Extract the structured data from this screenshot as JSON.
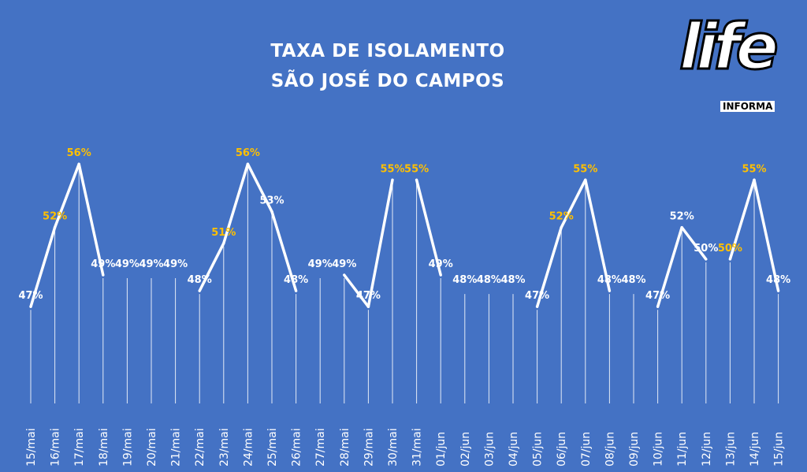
{
  "chart_data": {
    "type": "line",
    "title": [
      "TAXA DE ISOLAMENTO",
      "SÃO JOSÉ DO CAMPOS"
    ],
    "categories": [
      "15/mai",
      "16/mai",
      "17/mai",
      "18/mai",
      "19/mai",
      "20/mai",
      "21/mai",
      "22/mai",
      "23/mai",
      "24/mai",
      "25/mai",
      "26/mai",
      "27/mai",
      "28/mai",
      "29/mai",
      "30/mai",
      "31/mai",
      "01/jun",
      "02/jun",
      "03/jun",
      "04/jun",
      "05/jun",
      "06/jun",
      "07/jun",
      "08/jun",
      "09/jun",
      "10/jun",
      "11/jun",
      "12/jun",
      "13/jun",
      "14/jun",
      "15/jun"
    ],
    "values": [
      47,
      52,
      56,
      49,
      49,
      49,
      49,
      48,
      51,
      56,
      53,
      48,
      49,
      49,
      47,
      55,
      55,
      49,
      48,
      48,
      48,
      47,
      52,
      55,
      48,
      48,
      47,
      52,
      50,
      50,
      55,
      48
    ],
    "labels": [
      "47%",
      "52%",
      "56%",
      "49%",
      "49%",
      "49%",
      "49%",
      "48%",
      "51%",
      "56%",
      "53%",
      "48%",
      "49%",
      "49%",
      "47%",
      "55%",
      "55%",
      "49%",
      "48%",
      "48%",
      "48%",
      "47%",
      "52%",
      "55%",
      "48%",
      "48%",
      "47%",
      "52%",
      "50%",
      "50%",
      "55%",
      "48%"
    ],
    "highlight": [
      false,
      true,
      true,
      false,
      false,
      false,
      false,
      false,
      true,
      true,
      false,
      false,
      false,
      false,
      false,
      true,
      true,
      false,
      false,
      false,
      false,
      false,
      true,
      true,
      false,
      false,
      false,
      false,
      false,
      true,
      true,
      false
    ],
    "segments": [
      [
        0,
        1
      ],
      [
        1,
        2
      ],
      [
        2,
        3
      ],
      [
        7,
        8
      ],
      [
        8,
        9
      ],
      [
        9,
        10
      ],
      [
        10,
        11
      ],
      [
        13,
        14
      ],
      [
        14,
        15
      ],
      [
        16,
        17
      ],
      [
        21,
        22
      ],
      [
        22,
        23
      ],
      [
        23,
        24
      ],
      [
        26,
        27
      ],
      [
        27,
        28
      ],
      [
        29,
        30
      ],
      [
        30,
        31
      ]
    ],
    "ylim": [
      40,
      58
    ],
    "grid": false,
    "colors": {
      "background": "#4472c4",
      "line": "#ffffff",
      "label": "#ffffff",
      "highlight_label": "#ffc000"
    }
  },
  "logo": {
    "word": "life",
    "sub": "INFORMA"
  }
}
